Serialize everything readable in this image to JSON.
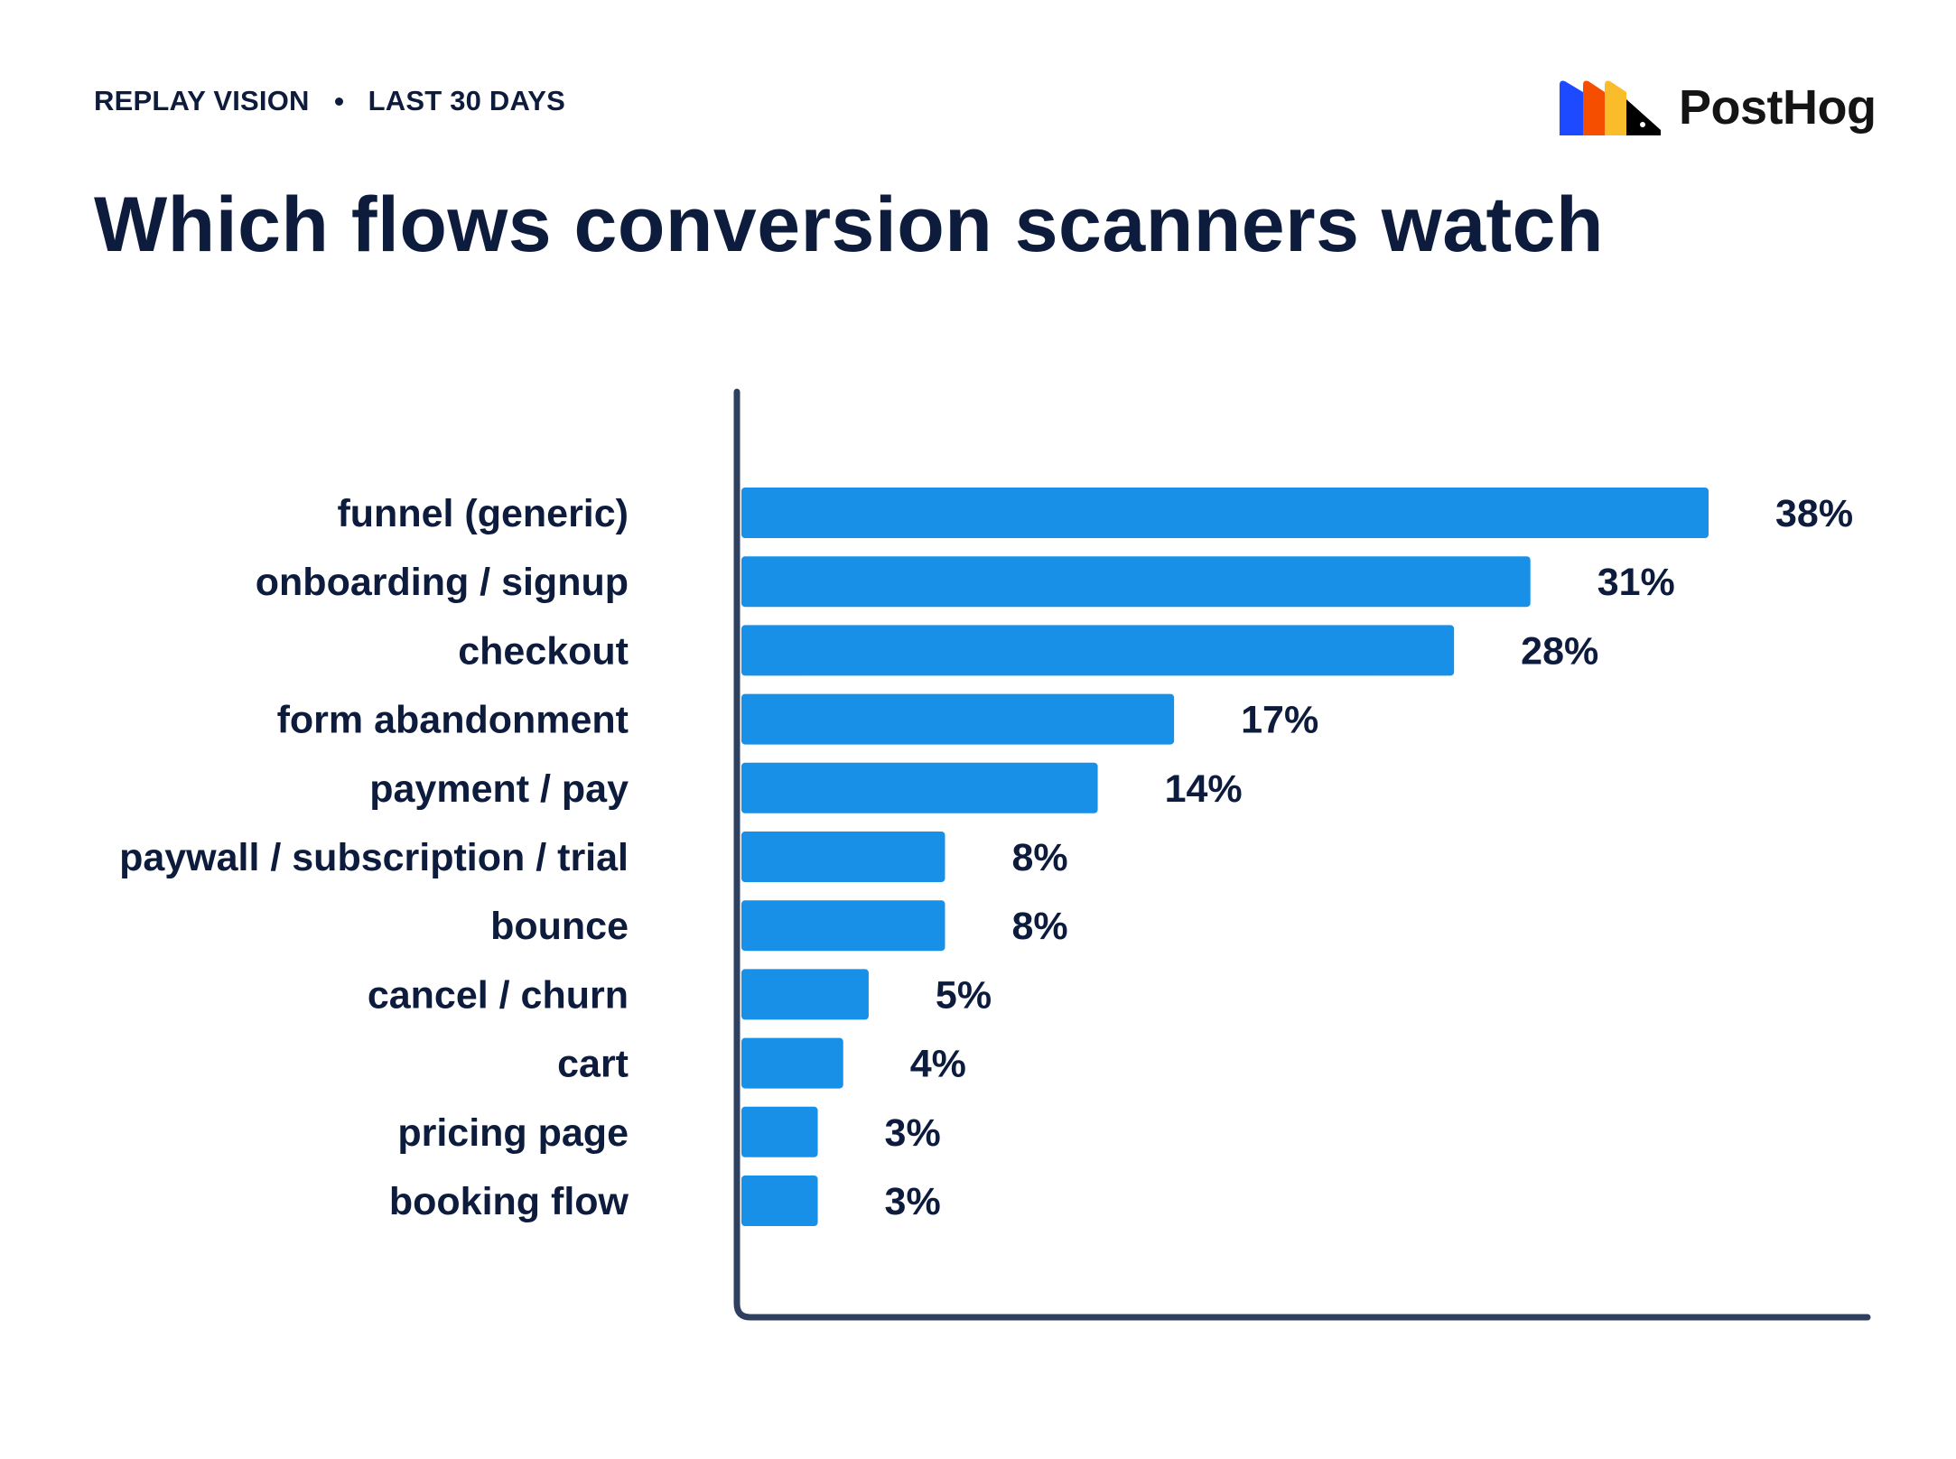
{
  "header": {
    "meta_left": "REPLAY VISION",
    "meta_right": "LAST 30 DAYS",
    "title": "Which flows conversion scanners watch"
  },
  "brand": {
    "name": "PostHog",
    "logo_icon": "posthog-hog-logo-icon",
    "logo_colors": [
      "#1d4aff",
      "#f54e00",
      "#f9bd2b",
      "#000000"
    ]
  },
  "colors": {
    "bar": "#1890e8",
    "text": "#0d1b3d",
    "axis": "#2f3f5f"
  },
  "chart_data": {
    "type": "bar",
    "orientation": "horizontal",
    "categories": [
      "funnel (generic)",
      "onboarding / signup",
      "checkout",
      "form abandonment",
      "payment / pay",
      "paywall / subscription / trial",
      "bounce",
      "cancel / churn",
      "cart",
      "pricing page",
      "booking flow"
    ],
    "values": [
      38,
      31,
      28,
      17,
      14,
      8,
      8,
      5,
      4,
      3,
      3
    ],
    "value_labels": [
      "38%",
      "31%",
      "28%",
      "17%",
      "14%",
      "8%",
      "8%",
      "5%",
      "4%",
      "3%",
      "3%"
    ],
    "unit": "%",
    "xlim": [
      0,
      44
    ],
    "grid": false,
    "legend": "none"
  }
}
